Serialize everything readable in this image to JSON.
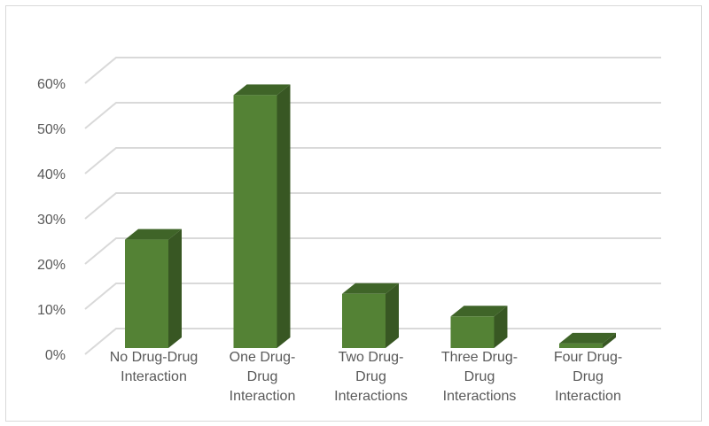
{
  "chart_data": {
    "type": "bar",
    "style": "3d-column",
    "categories": [
      [
        "No Drug-Drug",
        "Interaction"
      ],
      [
        "One Drug-",
        "Drug",
        "Interaction"
      ],
      [
        "Two Drug-",
        "Drug",
        "Interactions"
      ],
      [
        "Three Drug-",
        "Drug",
        "Interactions"
      ],
      [
        "Four Drug-",
        "Drug",
        "Interaction"
      ]
    ],
    "values": [
      24,
      56,
      12,
      7,
      1
    ],
    "ylim": [
      0,
      60
    ],
    "yticks": [
      "0%",
      "10%",
      "20%",
      "30%",
      "40%",
      "50%",
      "60%"
    ],
    "title": "",
    "xlabel": "",
    "ylabel": "",
    "grid": true,
    "legend": "none",
    "colors": {
      "front": "#548235",
      "side": "#385723",
      "top": "#3f6428",
      "grid": "#d9d9d9",
      "text": "#595959"
    }
  }
}
